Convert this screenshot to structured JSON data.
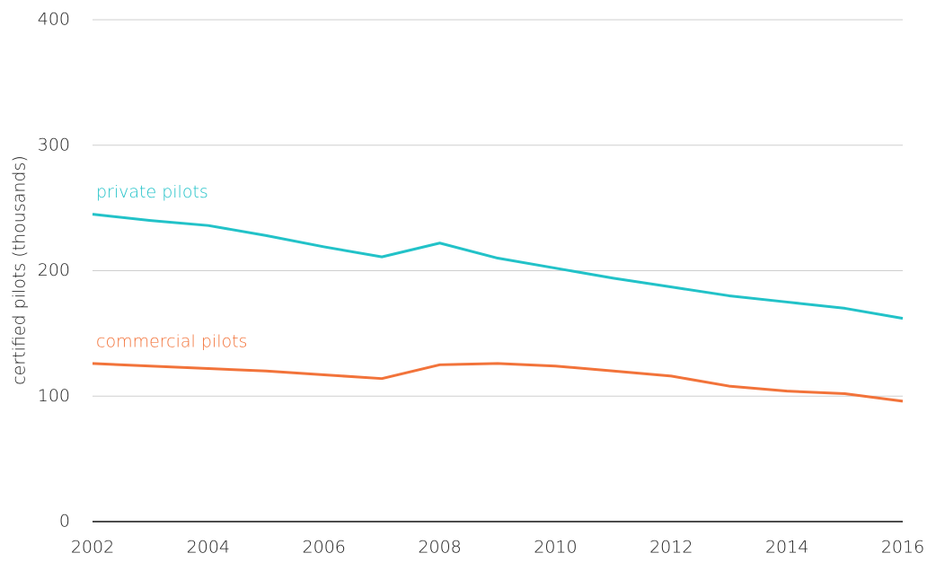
{
  "chart_data": {
    "type": "line",
    "y_label": "certified pilots (thousands)",
    "x": [
      2002,
      2003,
      2004,
      2005,
      2006,
      2007,
      2008,
      2009,
      2010,
      2011,
      2012,
      2013,
      2014,
      2015,
      2016
    ],
    "series": [
      {
        "name": "private pilots",
        "color": "#22c2c8",
        "values": [
          245,
          240,
          236,
          228,
          219,
          211,
          222,
          210,
          202,
          194,
          187,
          180,
          175,
          170,
          162
        ]
      },
      {
        "name": "commercial pilots",
        "color": "#f2733a",
        "values": [
          126,
          124,
          122,
          120,
          117,
          114,
          125,
          126,
          124,
          120,
          116,
          108,
          104,
          102,
          96
        ]
      }
    ],
    "xlim": [
      2002,
      2016
    ],
    "xticks": [
      2002,
      2004,
      2006,
      2008,
      2010,
      2012,
      2014,
      2016
    ],
    "ylim": [
      0,
      400
    ],
    "yticks": [
      0,
      100,
      200,
      300,
      400
    ],
    "grid": true
  }
}
